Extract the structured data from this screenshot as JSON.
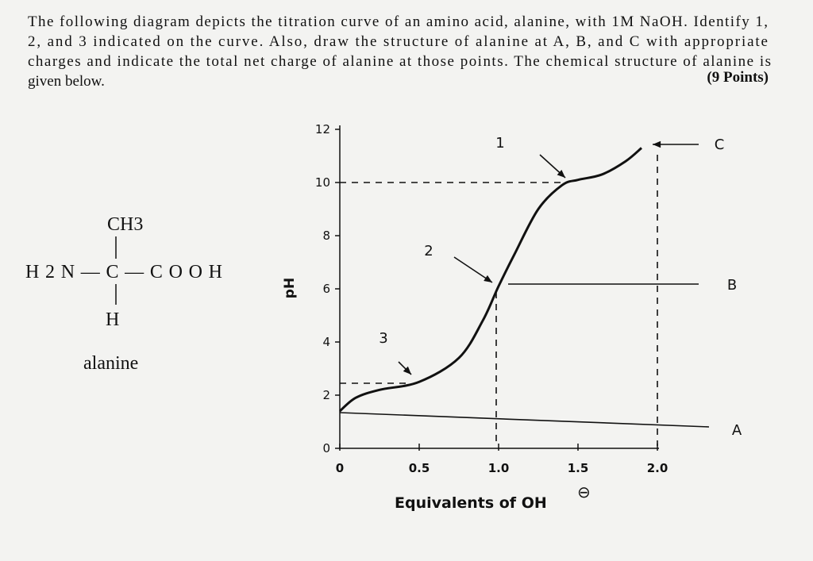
{
  "question": {
    "lines": [
      "The following diagram depicts the titration curve of an amino acid, alanine, with 1M NaOH. Identify 1,",
      "2, and 3 indicated on the curve. Also, draw the structure of alanine at A, B, and C with appropriate",
      "charges and indicate the total net charge of alanine at those points. The chemical structure of alanine is",
      "given below."
    ],
    "points": "(9 Points)"
  },
  "structure": {
    "top": "CH3",
    "middle": "H2N—C—COOH",
    "bottom": "H",
    "name": "alanine"
  },
  "chart_data": {
    "type": "line",
    "xlabel": "Equivalents of OH",
    "xlabel_superscript": "⊖",
    "ylabel": "pH",
    "x": [
      0,
      0.1,
      0.25,
      0.5,
      0.75,
      0.9,
      1.0,
      1.1,
      1.25,
      1.4,
      1.5,
      1.65,
      1.8,
      1.9
    ],
    "series": [
      {
        "color": "#111111",
        "values": [
          1.4,
          1.9,
          2.2,
          2.5,
          3.4,
          4.8,
          6.1,
          7.3,
          9.0,
          9.9,
          10.1,
          10.3,
          10.8,
          11.3
        ]
      }
    ],
    "xlim": [
      0,
      2.0
    ],
    "ylim": [
      0,
      12
    ],
    "xticks": [
      0,
      0.5,
      {
        "value": 1,
        "label": "1.0"
      },
      1.5,
      {
        "value": 2,
        "label": "2.0"
      }
    ],
    "yticks": [
      0,
      2,
      4,
      6,
      8,
      10,
      12
    ],
    "annotations": [
      "1",
      "2",
      "3",
      "A",
      "B",
      "C"
    ]
  }
}
